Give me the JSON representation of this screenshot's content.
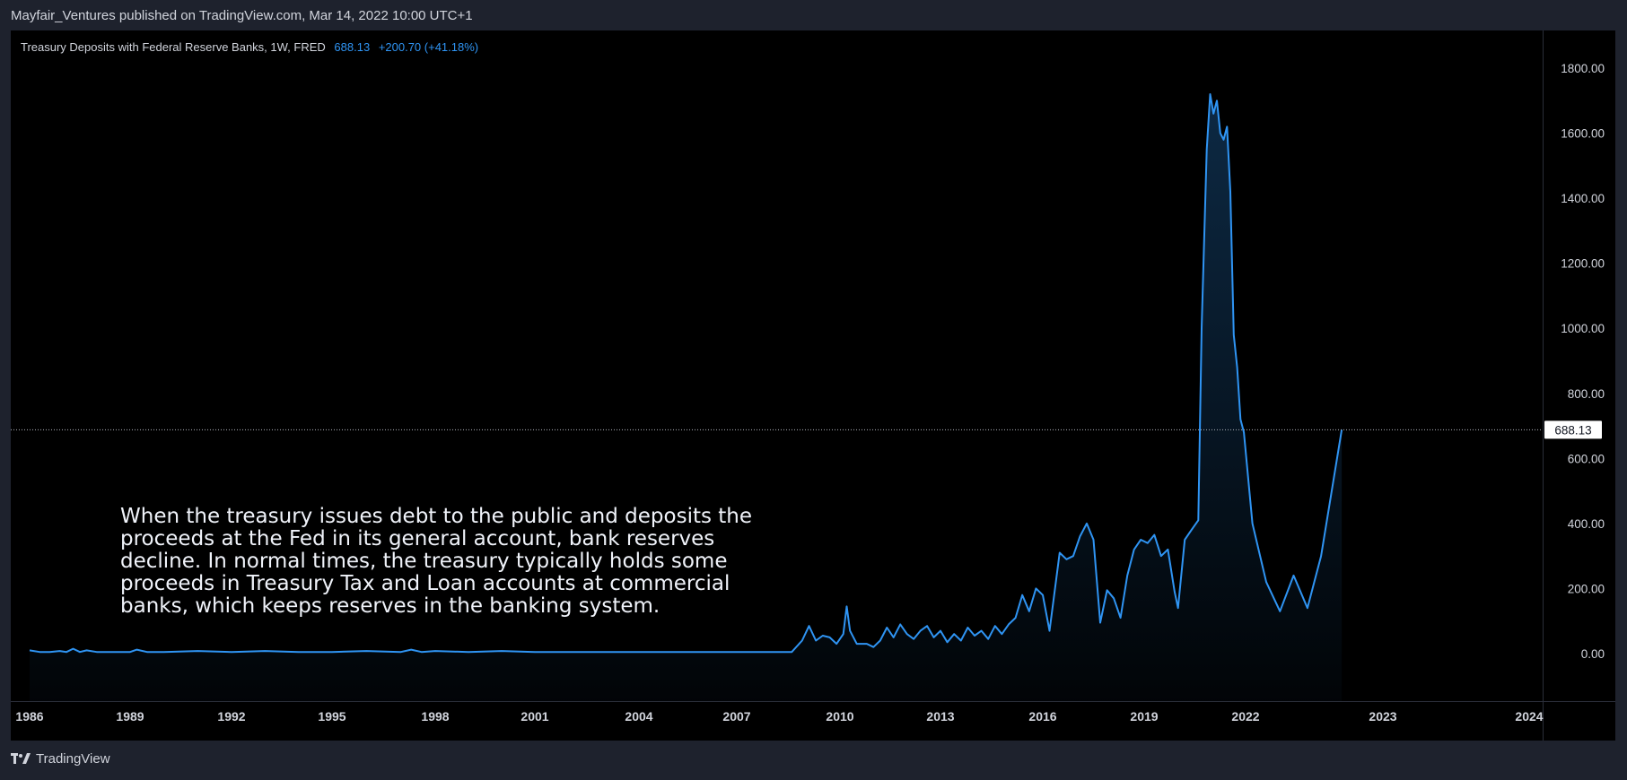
{
  "header": {
    "publish_line": "Mayfair_Ventures published on TradingView.com, Mar 14, 2022 10:00 UTC+1"
  },
  "legend": {
    "title": "Treasury Deposits with Federal Reserve Banks, 1W, FRED",
    "value": "688.13",
    "change": "+200.70 (+41.18%)"
  },
  "annotation": {
    "text": "When the treasury issues debt to the public and deposits the proceeds at the Fed in its general account, bank reserves decline. In normal times, the treasury typically holds some proceeds in Treasury Tax and Loan accounts at commercial banks, which keeps reserves in the banking system."
  },
  "footer": {
    "brand": "TradingView",
    "logo_icon": "tradingview-logo-icon"
  },
  "colors": {
    "background": "#000000",
    "frame": "#1e222d",
    "line": "#2f94f3",
    "text": "#d1d4dc",
    "price_line": "#b2b5be"
  },
  "chart_data": {
    "type": "area",
    "title": "Treasury Deposits with Federal Reserve Banks, 1W, FRED",
    "xlabel": "",
    "ylabel": "",
    "last_value": 688.13,
    "last_value_label": "688.13",
    "x_ticks": [
      {
        "label": "1986",
        "year": 1986.0
      },
      {
        "label": "1989",
        "year": 1989.0
      },
      {
        "label": "1992",
        "year": 1992.0
      },
      {
        "label": "1995",
        "year": 1995.0
      },
      {
        "label": "1998",
        "year": 1998.0
      },
      {
        "label": "2001",
        "year": 2001.0
      },
      {
        "label": "2004",
        "year": 2004.0
      },
      {
        "label": "2007",
        "year": 2007.0
      },
      {
        "label": "2010",
        "year": 2010.0
      },
      {
        "label": "2013",
        "year": 2013.0
      },
      {
        "label": "2016",
        "year": 2016.0
      },
      {
        "label": "2019",
        "year": 2019.0
      },
      {
        "label": "2022",
        "year": 2022.0
      },
      {
        "label": "2023",
        "year": 2023.0
      },
      {
        "label": "2024",
        "year": 2024.0
      }
    ],
    "y_ticks": [
      {
        "label": "0.00",
        "value": 0
      },
      {
        "label": "200.00",
        "value": 200
      },
      {
        "label": "400.00",
        "value": 400
      },
      {
        "label": "600.00",
        "value": 600
      },
      {
        "label": "800.00",
        "value": 800
      },
      {
        "label": "1000.00",
        "value": 1000
      },
      {
        "label": "1200.00",
        "value": 1200
      },
      {
        "label": "1400.00",
        "value": 1400
      },
      {
        "label": "1600.00",
        "value": 1600
      },
      {
        "label": "1800.00",
        "value": 1800
      }
    ],
    "ylim": [
      -120,
      1950
    ],
    "series": [
      {
        "values": [
          [
            1986.0,
            10
          ],
          [
            1986.3,
            5
          ],
          [
            1986.6,
            5
          ],
          [
            1986.9,
            8
          ],
          [
            1987.1,
            5
          ],
          [
            1987.3,
            15
          ],
          [
            1987.5,
            5
          ],
          [
            1987.7,
            10
          ],
          [
            1988.0,
            5
          ],
          [
            1988.5,
            5
          ],
          [
            1989.0,
            5
          ],
          [
            1989.2,
            12
          ],
          [
            1989.5,
            5
          ],
          [
            1990.0,
            5
          ],
          [
            1991.0,
            8
          ],
          [
            1992.0,
            5
          ],
          [
            1993.0,
            8
          ],
          [
            1994.0,
            5
          ],
          [
            1995.0,
            5
          ],
          [
            1996.0,
            8
          ],
          [
            1997.0,
            5
          ],
          [
            1997.3,
            12
          ],
          [
            1997.6,
            5
          ],
          [
            1998.0,
            8
          ],
          [
            1999.0,
            5
          ],
          [
            2000.0,
            8
          ],
          [
            2001.0,
            5
          ],
          [
            2002.0,
            5
          ],
          [
            2003.0,
            5
          ],
          [
            2004.0,
            5
          ],
          [
            2005.0,
            5
          ],
          [
            2006.0,
            5
          ],
          [
            2007.0,
            5
          ],
          [
            2008.0,
            5
          ],
          [
            2008.6,
            5
          ],
          [
            2008.9,
            40
          ],
          [
            2009.1,
            85
          ],
          [
            2009.3,
            40
          ],
          [
            2009.5,
            55
          ],
          [
            2009.7,
            50
          ],
          [
            2009.9,
            30
          ],
          [
            2010.1,
            60
          ],
          [
            2010.2,
            145
          ],
          [
            2010.3,
            70
          ],
          [
            2010.5,
            30
          ],
          [
            2010.8,
            30
          ],
          [
            2011.0,
            20
          ],
          [
            2011.2,
            40
          ],
          [
            2011.4,
            80
          ],
          [
            2011.6,
            50
          ],
          [
            2011.8,
            90
          ],
          [
            2012.0,
            60
          ],
          [
            2012.2,
            45
          ],
          [
            2012.4,
            70
          ],
          [
            2012.6,
            85
          ],
          [
            2012.8,
            50
          ],
          [
            2013.0,
            70
          ],
          [
            2013.2,
            35
          ],
          [
            2013.4,
            60
          ],
          [
            2013.6,
            40
          ],
          [
            2013.8,
            80
          ],
          [
            2014.0,
            55
          ],
          [
            2014.2,
            70
          ],
          [
            2014.4,
            45
          ],
          [
            2014.6,
            85
          ],
          [
            2014.8,
            60
          ],
          [
            2015.0,
            90
          ],
          [
            2015.2,
            110
          ],
          [
            2015.4,
            180
          ],
          [
            2015.6,
            130
          ],
          [
            2015.8,
            200
          ],
          [
            2016.0,
            180
          ],
          [
            2016.2,
            70
          ],
          [
            2016.5,
            310
          ],
          [
            2016.7,
            290
          ],
          [
            2016.9,
            300
          ],
          [
            2017.1,
            360
          ],
          [
            2017.3,
            400
          ],
          [
            2017.5,
            350
          ],
          [
            2017.7,
            95
          ],
          [
            2017.9,
            195
          ],
          [
            2018.1,
            170
          ],
          [
            2018.3,
            110
          ],
          [
            2018.5,
            240
          ],
          [
            2018.7,
            320
          ],
          [
            2018.9,
            350
          ],
          [
            2019.1,
            340
          ],
          [
            2019.3,
            365
          ],
          [
            2019.5,
            300
          ],
          [
            2019.7,
            320
          ],
          [
            2019.9,
            190
          ],
          [
            2020.0,
            140
          ],
          [
            2020.2,
            350
          ],
          [
            2020.4,
            380
          ],
          [
            2020.6,
            410
          ],
          [
            2020.7,
            1000
          ],
          [
            2020.85,
            1550
          ],
          [
            2020.95,
            1720
          ],
          [
            2021.05,
            1660
          ],
          [
            2021.15,
            1700
          ],
          [
            2021.25,
            1600
          ],
          [
            2021.35,
            1580
          ],
          [
            2021.45,
            1620
          ],
          [
            2021.55,
            1420
          ],
          [
            2021.65,
            980
          ],
          [
            2021.75,
            880
          ],
          [
            2021.85,
            720
          ],
          [
            2021.95,
            680
          ],
          [
            2022.05,
            400
          ],
          [
            2022.15,
            220
          ],
          [
            2022.25,
            130
          ],
          [
            2022.35,
            240
          ],
          [
            2022.45,
            140
          ],
          [
            2022.55,
            300
          ],
          [
            2022.7,
            688.13
          ]
        ]
      }
    ]
  }
}
